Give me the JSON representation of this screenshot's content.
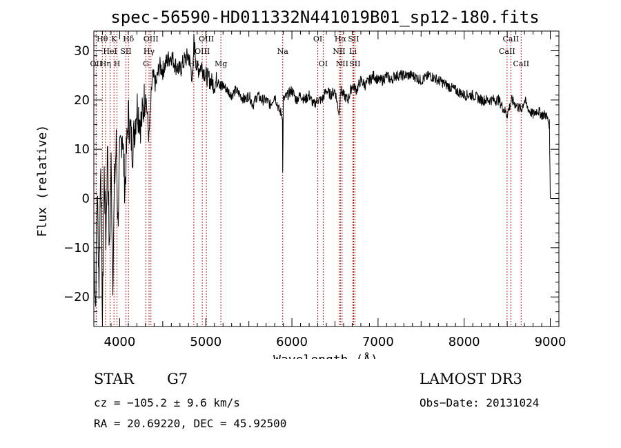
{
  "chart_data": {
    "type": "line",
    "title": "spec-56590-HD011332N441019B01_sp12-180.fits",
    "xlabel": "Wavelength (Å)",
    "ylabel": "Flux (relative)",
    "xlim": [
      3700,
      9100
    ],
    "ylim": [
      -26,
      34
    ],
    "xticks": [
      4000,
      5000,
      6000,
      7000,
      8000,
      9000
    ],
    "yticks": [
      -20,
      -10,
      0,
      10,
      20,
      30
    ],
    "series": [
      {
        "name": "flux",
        "x": [
          3700,
          3720,
          3740,
          3760,
          3780,
          3800,
          3820,
          3840,
          3860,
          3880,
          3900,
          3920,
          3940,
          3960,
          3980,
          4000,
          4030,
          4060,
          4100,
          4150,
          4200,
          4250,
          4300,
          4340,
          4380,
          4420,
          4460,
          4500,
          4550,
          4600,
          4650,
          4700,
          4750,
          4800,
          4850,
          4862,
          4900,
          4950,
          5000,
          5050,
          5100,
          5150,
          5175,
          5200,
          5250,
          5300,
          5350,
          5400,
          5450,
          5500,
          5550,
          5600,
          5650,
          5700,
          5750,
          5800,
          5850,
          5890,
          5893,
          5900,
          5950,
          6000,
          6050,
          6100,
          6150,
          6200,
          6250,
          6300,
          6350,
          6400,
          6450,
          6500,
          6550,
          6563,
          6600,
          6650,
          6700,
          6750,
          6800,
          6850,
          6900,
          6950,
          7000,
          7050,
          7100,
          7150,
          7200,
          7300,
          7400,
          7500,
          7600,
          7700,
          7800,
          7900,
          8000,
          8100,
          8200,
          8300,
          8400,
          8498,
          8550,
          8600,
          8662,
          8700,
          8750,
          8800,
          8850,
          8900,
          8950,
          8990,
          9000
        ],
        "y": [
          -10,
          -22,
          2,
          -18,
          9,
          -25,
          5,
          -8,
          12,
          -12,
          7,
          -16,
          3,
          11,
          -5,
          8,
          14,
          2,
          17,
          10,
          19,
          15,
          22,
          12,
          25,
          23,
          27,
          26,
          28,
          29,
          27,
          26,
          28,
          29,
          24,
          32,
          26,
          27,
          25,
          24,
          23,
          25,
          22,
          23,
          22,
          21,
          22,
          21,
          20,
          21,
          19,
          21,
          20,
          20,
          19,
          21,
          18,
          17,
          5,
          20,
          21,
          22,
          20,
          21,
          20,
          21,
          19,
          20,
          20,
          22,
          21,
          22,
          17,
          22,
          21,
          20,
          23,
          22,
          24,
          23,
          24,
          25,
          24,
          24,
          25,
          24,
          25,
          25,
          25,
          24,
          25,
          24,
          23,
          22,
          21,
          21,
          20,
          20,
          20,
          17,
          20,
          19,
          18,
          20,
          18,
          17,
          18,
          17,
          17,
          15,
          0
        ],
        "color": "#000000"
      }
    ],
    "line_markers": [
      {
        "label": "Hθ",
        "wavelength": 3798,
        "row": 1
      },
      {
        "label": "OII",
        "wavelength": 3727,
        "row": 3
      },
      {
        "label": "HeI",
        "wavelength": 3889,
        "row": 2
      },
      {
        "label": "Hη",
        "wavelength": 3835,
        "row": 3
      },
      {
        "label": "K",
        "wavelength": 3934,
        "row": 1
      },
      {
        "label": "SII",
        "wavelength": 4072,
        "row": 2
      },
      {
        "label": "H",
        "wavelength": 3969,
        "row": 3
      },
      {
        "label": "Hδ",
        "wavelength": 4102,
        "row": 1
      },
      {
        "label": "OIII",
        "wavelength": 4363,
        "row": 1
      },
      {
        "label": "Hγ",
        "wavelength": 4341,
        "row": 2
      },
      {
        "label": "G",
        "wavelength": 4305,
        "row": 3
      },
      {
        "label": "OIII",
        "wavelength": 5007,
        "row": 1
      },
      {
        "label": "OIII",
        "wavelength": 4959,
        "row": 2
      },
      {
        "label": "Hβ",
        "wavelength": 4861,
        "row": 3
      },
      {
        "label": "Mg",
        "wavelength": 5175,
        "row": 3
      },
      {
        "label": "Na",
        "wavelength": 5893,
        "row": 2
      },
      {
        "label": "OI",
        "wavelength": 6300,
        "row": 1
      },
      {
        "label": "OI",
        "wavelength": 6363,
        "row": 3
      },
      {
        "label": "Hα",
        "wavelength": 6563,
        "row": 1
      },
      {
        "label": "NII",
        "wavelength": 6548,
        "row": 2
      },
      {
        "label": "NII",
        "wavelength": 6583,
        "row": 3
      },
      {
        "label": "SII",
        "wavelength": 6716,
        "row": 1
      },
      {
        "label": "Li",
        "wavelength": 6708,
        "row": 2
      },
      {
        "label": "SII",
        "wavelength": 6731,
        "row": 3
      },
      {
        "label": "CaII",
        "wavelength": 8542,
        "row": 1
      },
      {
        "label": "CaII",
        "wavelength": 8498,
        "row": 2
      },
      {
        "label": "CaII",
        "wavelength": 8662,
        "row": 3
      }
    ]
  },
  "info": {
    "object_class": "STAR",
    "subclass": "G7",
    "cz": "cz = −105.2 ± 9.6 km/s",
    "coords": "RA =  20.69220, DEC =  45.92500",
    "survey": "LAMOST DR3",
    "obs_date": "Obs−Date: 20131024"
  }
}
